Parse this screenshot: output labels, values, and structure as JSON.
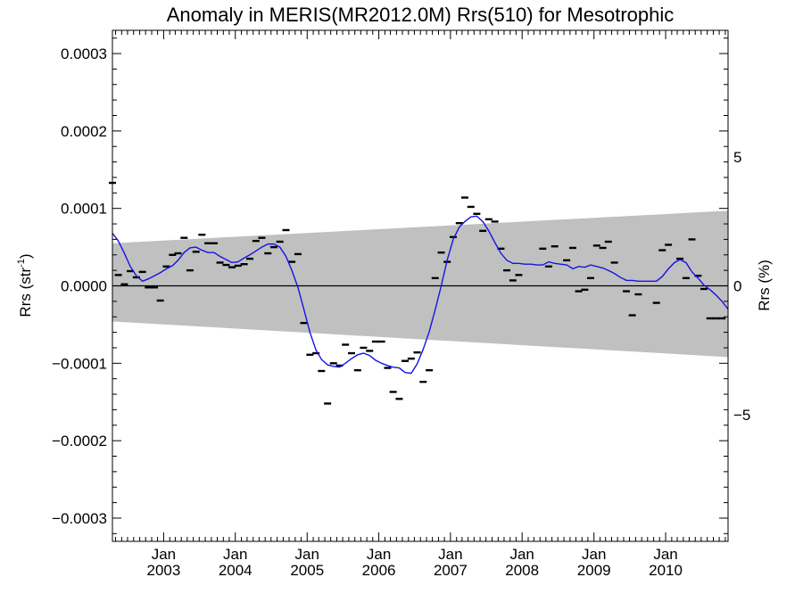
{
  "chart_data": {
    "type": "scatter",
    "title": "Anomaly in MERIS(MR2012.0M) Rrs(510) for Mesotrophic",
    "ylabel_left": {
      "base": "Rrs (str",
      "sup": "-1",
      "close": ")"
    },
    "ylabel_right": "Rrs (%)",
    "x_axis": {
      "range": [
        "2002-04-15",
        "2010-11-15"
      ],
      "ticks": [
        {
          "date": "2003-01-01",
          "label_top": "Jan",
          "label_bottom": "2003"
        },
        {
          "date": "2004-01-01",
          "label_top": "Jan",
          "label_bottom": "2004"
        },
        {
          "date": "2005-01-01",
          "label_top": "Jan",
          "label_bottom": "2005"
        },
        {
          "date": "2006-01-01",
          "label_top": "Jan",
          "label_bottom": "2006"
        },
        {
          "date": "2007-01-01",
          "label_top": "Jan",
          "label_bottom": "2007"
        },
        {
          "date": "2008-01-01",
          "label_top": "Jan",
          "label_bottom": "2008"
        },
        {
          "date": "2009-01-01",
          "label_top": "Jan",
          "label_bottom": "2009"
        },
        {
          "date": "2010-01-01",
          "label_top": "Jan",
          "label_bottom": "2010"
        }
      ]
    },
    "y_left": {
      "range": [
        -0.00033,
        0.00033
      ],
      "ticks": [
        {
          "value": 0.0003,
          "label": "0.0003"
        },
        {
          "value": 0.0002,
          "label": "0.0002"
        },
        {
          "value": 0.0001,
          "label": "0.0001"
        },
        {
          "value": 0.0,
          "label": "0.0000"
        },
        {
          "value": -0.0001,
          "label": "−0.0001"
        },
        {
          "value": -0.0002,
          "label": "−0.0002"
        },
        {
          "value": -0.0003,
          "label": "−0.0003"
        }
      ]
    },
    "y_right": {
      "range": [
        -9.9,
        9.9
      ],
      "ticks": [
        {
          "value": 5,
          "label": "5"
        },
        {
          "value": 0,
          "label": "0"
        },
        {
          "value": -5,
          "label": "−5"
        }
      ]
    },
    "band": {
      "upper": [
        [
          "2002-04-15",
          5.5e-05
        ],
        [
          "2010-11-15",
          9.7e-05
        ]
      ],
      "lower": [
        [
          "2002-04-15",
          -4.6e-05
        ],
        [
          "2010-11-15",
          -9.2e-05
        ]
      ]
    },
    "points": [
      [
        "2002-04-15",
        0.000133
      ],
      [
        "2002-05-15",
        1.4e-05
      ],
      [
        "2002-06-15",
        2e-06
      ],
      [
        "2002-07-15",
        1.9e-05
      ],
      [
        "2002-08-15",
        1.1e-05
      ],
      [
        "2002-09-15",
        1.8e-05
      ],
      [
        "2002-10-15",
        -2e-06
      ],
      [
        "2002-11-15",
        -2e-06
      ],
      [
        "2002-12-15",
        -1.9e-05
      ],
      [
        "2003-01-15",
        2.5e-05
      ],
      [
        "2003-02-15",
        4e-05
      ],
      [
        "2003-03-15",
        4.2e-05
      ],
      [
        "2003-04-15",
        6.2e-05
      ],
      [
        "2003-05-15",
        2e-05
      ],
      [
        "2003-06-15",
        4.4e-05
      ],
      [
        "2003-07-15",
        6.6e-05
      ],
      [
        "2003-08-15",
        5.5e-05
      ],
      [
        "2003-09-15",
        5.5e-05
      ],
      [
        "2003-10-15",
        3e-05
      ],
      [
        "2003-11-15",
        2.7e-05
      ],
      [
        "2003-12-15",
        2.4e-05
      ],
      [
        "2004-01-15",
        2.6e-05
      ],
      [
        "2004-02-15",
        2.8e-05
      ],
      [
        "2004-03-15",
        3.5e-05
      ],
      [
        "2004-04-15",
        5.8e-05
      ],
      [
        "2004-05-15",
        6.2e-05
      ],
      [
        "2004-06-15",
        4.2e-05
      ],
      [
        "2004-07-15",
        5e-05
      ],
      [
        "2004-08-15",
        5.7e-05
      ],
      [
        "2004-09-15",
        7.2e-05
      ],
      [
        "2004-10-15",
        3.1e-05
      ],
      [
        "2004-11-15",
        4.1e-05
      ],
      [
        "2004-12-15",
        -4.8e-05
      ],
      [
        "2005-01-15",
        -8.9e-05
      ],
      [
        "2005-02-15",
        -8.7e-05
      ],
      [
        "2005-03-15",
        -0.00011
      ],
      [
        "2005-04-15",
        -0.000152
      ],
      [
        "2005-05-15",
        -0.0001
      ],
      [
        "2005-06-15",
        -0.000103
      ],
      [
        "2005-07-15",
        -7.6e-05
      ],
      [
        "2005-08-15",
        -8.7e-05
      ],
      [
        "2005-09-15",
        -0.000109
      ],
      [
        "2005-10-15",
        -8e-05
      ],
      [
        "2005-11-15",
        -8.4e-05
      ],
      [
        "2005-12-15",
        -7.2e-05
      ],
      [
        "2006-01-15",
        -7.2e-05
      ],
      [
        "2006-02-15",
        -0.000106
      ],
      [
        "2006-03-15",
        -0.000137
      ],
      [
        "2006-04-15",
        -0.000146
      ],
      [
        "2006-05-15",
        -9.7e-05
      ],
      [
        "2006-06-15",
        -9.4e-05
      ],
      [
        "2006-07-15",
        -8.6e-05
      ],
      [
        "2006-08-15",
        -0.000124
      ],
      [
        "2006-09-15",
        -0.000109
      ],
      [
        "2006-10-15",
        1e-05
      ],
      [
        "2006-11-15",
        4.3e-05
      ],
      [
        "2006-12-15",
        3.1e-05
      ],
      [
        "2007-01-15",
        6.3e-05
      ],
      [
        "2007-02-15",
        8.1e-05
      ],
      [
        "2007-03-15",
        0.000114
      ],
      [
        "2007-04-15",
        0.000102
      ],
      [
        "2007-05-15",
        9.3e-05
      ],
      [
        "2007-06-15",
        7.1e-05
      ],
      [
        "2007-07-15",
        8.6e-05
      ],
      [
        "2007-08-15",
        8.3e-05
      ],
      [
        "2007-09-15",
        4.8e-05
      ],
      [
        "2007-10-15",
        2e-05
      ],
      [
        "2007-11-15",
        7e-06
      ],
      [
        "2007-12-15",
        1.4e-05
      ],
      [
        "2008-04-15",
        4.8e-05
      ],
      [
        "2008-05-15",
        2.5e-05
      ],
      [
        "2008-06-15",
        5.1e-05
      ],
      [
        "2008-08-15",
        3.3e-05
      ],
      [
        "2008-09-15",
        4.9e-05
      ],
      [
        "2008-10-15",
        -7e-06
      ],
      [
        "2008-11-15",
        -5e-06
      ],
      [
        "2008-12-15",
        1e-05
      ],
      [
        "2009-01-15",
        5.2e-05
      ],
      [
        "2009-02-15",
        4.9e-05
      ],
      [
        "2009-03-15",
        5.7e-05
      ],
      [
        "2009-04-15",
        3e-05
      ],
      [
        "2009-06-15",
        -7e-06
      ],
      [
        "2009-07-15",
        -3.8e-05
      ],
      [
        "2009-08-15",
        -1.1e-05
      ],
      [
        "2009-11-15",
        -2.2e-05
      ],
      [
        "2009-12-15",
        4.6e-05
      ],
      [
        "2010-01-15",
        5.3e-05
      ],
      [
        "2010-03-15",
        3.5e-05
      ],
      [
        "2010-04-15",
        1e-05
      ],
      [
        "2010-05-15",
        6e-05
      ],
      [
        "2010-06-15",
        1.3e-05
      ],
      [
        "2010-07-15",
        -4e-06
      ],
      [
        "2010-08-15",
        -4.2e-05
      ],
      [
        "2010-09-15",
        -4.2e-05
      ],
      [
        "2010-10-15",
        -4.2e-05
      ]
    ],
    "smoothed": [
      [
        "2002-04-15",
        6.8e-05
      ],
      [
        "2002-05-15",
        5.8e-05
      ],
      [
        "2002-06-15",
        4.2e-05
      ],
      [
        "2002-07-15",
        2.5e-05
      ],
      [
        "2002-08-15",
        1.3e-05
      ],
      [
        "2002-09-15",
        6e-06
      ],
      [
        "2002-10-15",
        9e-06
      ],
      [
        "2002-11-15",
        1.3e-05
      ],
      [
        "2002-12-15",
        1.7e-05
      ],
      [
        "2003-01-15",
        2.2e-05
      ],
      [
        "2003-02-15",
        2.6e-05
      ],
      [
        "2003-03-15",
        3.3e-05
      ],
      [
        "2003-04-15",
        4.3e-05
      ],
      [
        "2003-05-15",
        4.9e-05
      ],
      [
        "2003-06-15",
        5e-05
      ],
      [
        "2003-07-15",
        4.6e-05
      ],
      [
        "2003-08-15",
        4.3e-05
      ],
      [
        "2003-09-15",
        4.3e-05
      ],
      [
        "2003-10-15",
        3.8e-05
      ],
      [
        "2003-11-15",
        3.4e-05
      ],
      [
        "2003-12-15",
        3e-05
      ],
      [
        "2004-01-15",
        3.1e-05
      ],
      [
        "2004-02-15",
        3.6e-05
      ],
      [
        "2004-03-15",
        4e-05
      ],
      [
        "2004-04-15",
        4.5e-05
      ],
      [
        "2004-05-15",
        5e-05
      ],
      [
        "2004-06-15",
        5.4e-05
      ],
      [
        "2004-07-15",
        5.4e-05
      ],
      [
        "2004-08-15",
        5e-05
      ],
      [
        "2004-09-15",
        3.8e-05
      ],
      [
        "2004-10-15",
        2e-05
      ],
      [
        "2004-11-15",
        -2e-06
      ],
      [
        "2004-12-15",
        -3e-05
      ],
      [
        "2005-01-15",
        -6e-05
      ],
      [
        "2005-02-15",
        -8.3e-05
      ],
      [
        "2005-03-15",
        -9.5e-05
      ],
      [
        "2005-04-15",
        -0.000102
      ],
      [
        "2005-05-15",
        -0.000104
      ],
      [
        "2005-06-15",
        -0.000105
      ],
      [
        "2005-07-15",
        -0.0001
      ],
      [
        "2005-08-15",
        -9.4e-05
      ],
      [
        "2005-09-15",
        -8.9e-05
      ],
      [
        "2005-10-15",
        -8.7e-05
      ],
      [
        "2005-11-15",
        -9e-05
      ],
      [
        "2005-12-15",
        -9.6e-05
      ],
      [
        "2006-01-15",
        -0.0001
      ],
      [
        "2006-02-15",
        -0.000103
      ],
      [
        "2006-03-15",
        -0.000105
      ],
      [
        "2006-04-15",
        -0.000106
      ],
      [
        "2006-05-15",
        -0.000112
      ],
      [
        "2006-06-15",
        -0.000113
      ],
      [
        "2006-07-15",
        -0.000101
      ],
      [
        "2006-08-15",
        -8.2e-05
      ],
      [
        "2006-09-15",
        -5.9e-05
      ],
      [
        "2006-10-15",
        -3.1e-05
      ],
      [
        "2006-11-15",
        0.0
      ],
      [
        "2006-12-15",
        3.3e-05
      ],
      [
        "2007-01-15",
        6e-05
      ],
      [
        "2007-02-15",
        7.6e-05
      ],
      [
        "2007-03-15",
        8.3e-05
      ],
      [
        "2007-04-15",
        8.9e-05
      ],
      [
        "2007-05-15",
        9e-05
      ],
      [
        "2007-06-15",
        8.3e-05
      ],
      [
        "2007-07-15",
        7.1e-05
      ],
      [
        "2007-08-15",
        5.6e-05
      ],
      [
        "2007-09-15",
        4.2e-05
      ],
      [
        "2007-10-15",
        3.3e-05
      ],
      [
        "2007-11-15",
        2.9e-05
      ],
      [
        "2007-12-15",
        2.9e-05
      ],
      [
        "2008-01-15",
        2.8e-05
      ],
      [
        "2008-02-15",
        2.8e-05
      ],
      [
        "2008-03-15",
        2.7e-05
      ],
      [
        "2008-04-15",
        2.7e-05
      ],
      [
        "2008-05-15",
        3.1e-05
      ],
      [
        "2008-06-15",
        2.9e-05
      ],
      [
        "2008-07-15",
        2.8e-05
      ],
      [
        "2008-08-15",
        2.7e-05
      ],
      [
        "2008-09-15",
        2.2e-05
      ],
      [
        "2008-10-15",
        2.5e-05
      ],
      [
        "2008-11-15",
        2.4e-05
      ],
      [
        "2008-12-15",
        2.7e-05
      ],
      [
        "2009-01-15",
        2.5e-05
      ],
      [
        "2009-02-15",
        2.3e-05
      ],
      [
        "2009-03-15",
        2e-05
      ],
      [
        "2009-04-15",
        1.6e-05
      ],
      [
        "2009-05-15",
        1.1e-05
      ],
      [
        "2009-06-15",
        7e-06
      ],
      [
        "2009-07-15",
        7e-06
      ],
      [
        "2009-08-15",
        6e-06
      ],
      [
        "2009-09-15",
        6e-06
      ],
      [
        "2009-10-15",
        6e-06
      ],
      [
        "2009-11-15",
        6e-06
      ],
      [
        "2009-12-15",
        1.2e-05
      ],
      [
        "2010-01-15",
        2.2e-05
      ],
      [
        "2010-02-15",
        3e-05
      ],
      [
        "2010-03-15",
        3.4e-05
      ],
      [
        "2010-04-15",
        3e-05
      ],
      [
        "2010-05-15",
        1.8e-05
      ],
      [
        "2010-06-15",
        1e-05
      ],
      [
        "2010-07-15",
        1e-06
      ],
      [
        "2010-08-15",
        -5e-06
      ],
      [
        "2010-09-15",
        -1.2e-05
      ],
      [
        "2010-10-15",
        -2e-05
      ],
      [
        "2010-11-15",
        -3e-05
      ]
    ],
    "colors": {
      "band": "#c0c0c0",
      "line": "#1414e6",
      "points": "#000000",
      "zero_line": "#000000",
      "axis": "#000000"
    },
    "grid": false,
    "legend": "none"
  }
}
